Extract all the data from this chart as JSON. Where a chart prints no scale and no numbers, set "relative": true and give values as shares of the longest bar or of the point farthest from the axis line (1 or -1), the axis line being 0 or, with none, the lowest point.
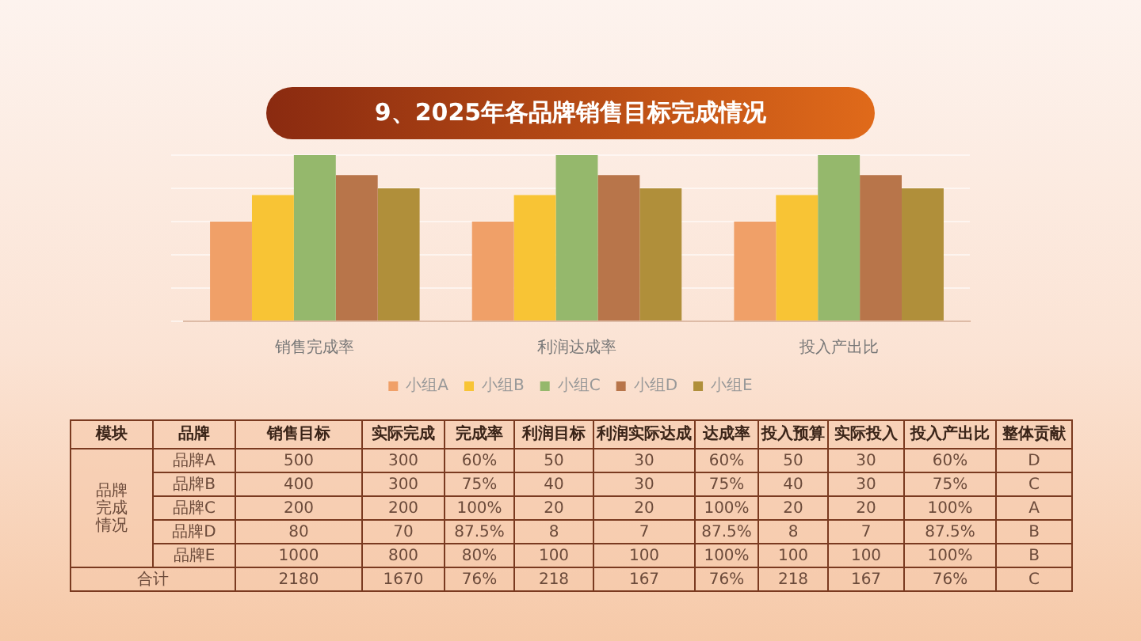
{
  "chart_data": [
    {
      "type": "bar",
      "title": "9、2025年各品牌销售目标完成情况",
      "relative": true,
      "categories": [
        "销售完成率",
        "利润达成率",
        "投入产出比"
      ],
      "grid": "y",
      "legend": "bottom",
      "series": [
        {
          "name": "小组A",
          "color": "#f0a068",
          "values": [
            0.6,
            0.6,
            0.6
          ]
        },
        {
          "name": "小组B",
          "color": "#f8c435",
          "values": [
            0.76,
            0.76,
            0.76
          ]
        },
        {
          "name": "小组C",
          "color": "#95b86c",
          "values": [
            1,
            1,
            1
          ]
        },
        {
          "name": "小组D",
          "color": "#b8754a",
          "values": [
            0.88,
            0.88,
            0.88
          ]
        },
        {
          "name": "小组E",
          "color": "#b08f3a",
          "values": [
            0.8,
            0.8,
            0.8
          ]
        }
      ]
    },
    {
      "type": "other",
      "categories": [
        "模块",
        "品牌",
        "销售目标",
        "实际完成",
        "完成率",
        "利润目标",
        "利润实际达成",
        "达成率",
        "投入预算",
        "实际投入",
        "投入产出比",
        "整体贡献"
      ],
      "annotations": [
        "品牌完成情况"
      ],
      "y_categories": [
        "品牌A",
        "品牌B",
        "品牌C",
        "品牌D",
        "品牌E",
        "合计"
      ],
      "cell_labels": [
        [
          "500",
          "300",
          "60%",
          "50",
          "30",
          "60%",
          "50",
          "30",
          "60%",
          "D"
        ],
        [
          "400",
          "300",
          "75%",
          "40",
          "30",
          "75%",
          "40",
          "30",
          "75%",
          "C"
        ],
        [
          "200",
          "200",
          "100%",
          "20",
          "20",
          "100%",
          "20",
          "20",
          "100%",
          "A"
        ],
        [
          "80",
          "70",
          "87.5%",
          "8",
          "7",
          "87.5%",
          "8",
          "7",
          "87.5%",
          "B"
        ],
        [
          "1000",
          "800",
          "80%",
          "100",
          "100",
          "100%",
          "100",
          "100",
          "100%",
          "B"
        ],
        [
          "2180",
          "1670",
          "76%",
          "218",
          "167",
          "76%",
          "218",
          "167",
          "76%",
          "C"
        ]
      ]
    }
  ]
}
